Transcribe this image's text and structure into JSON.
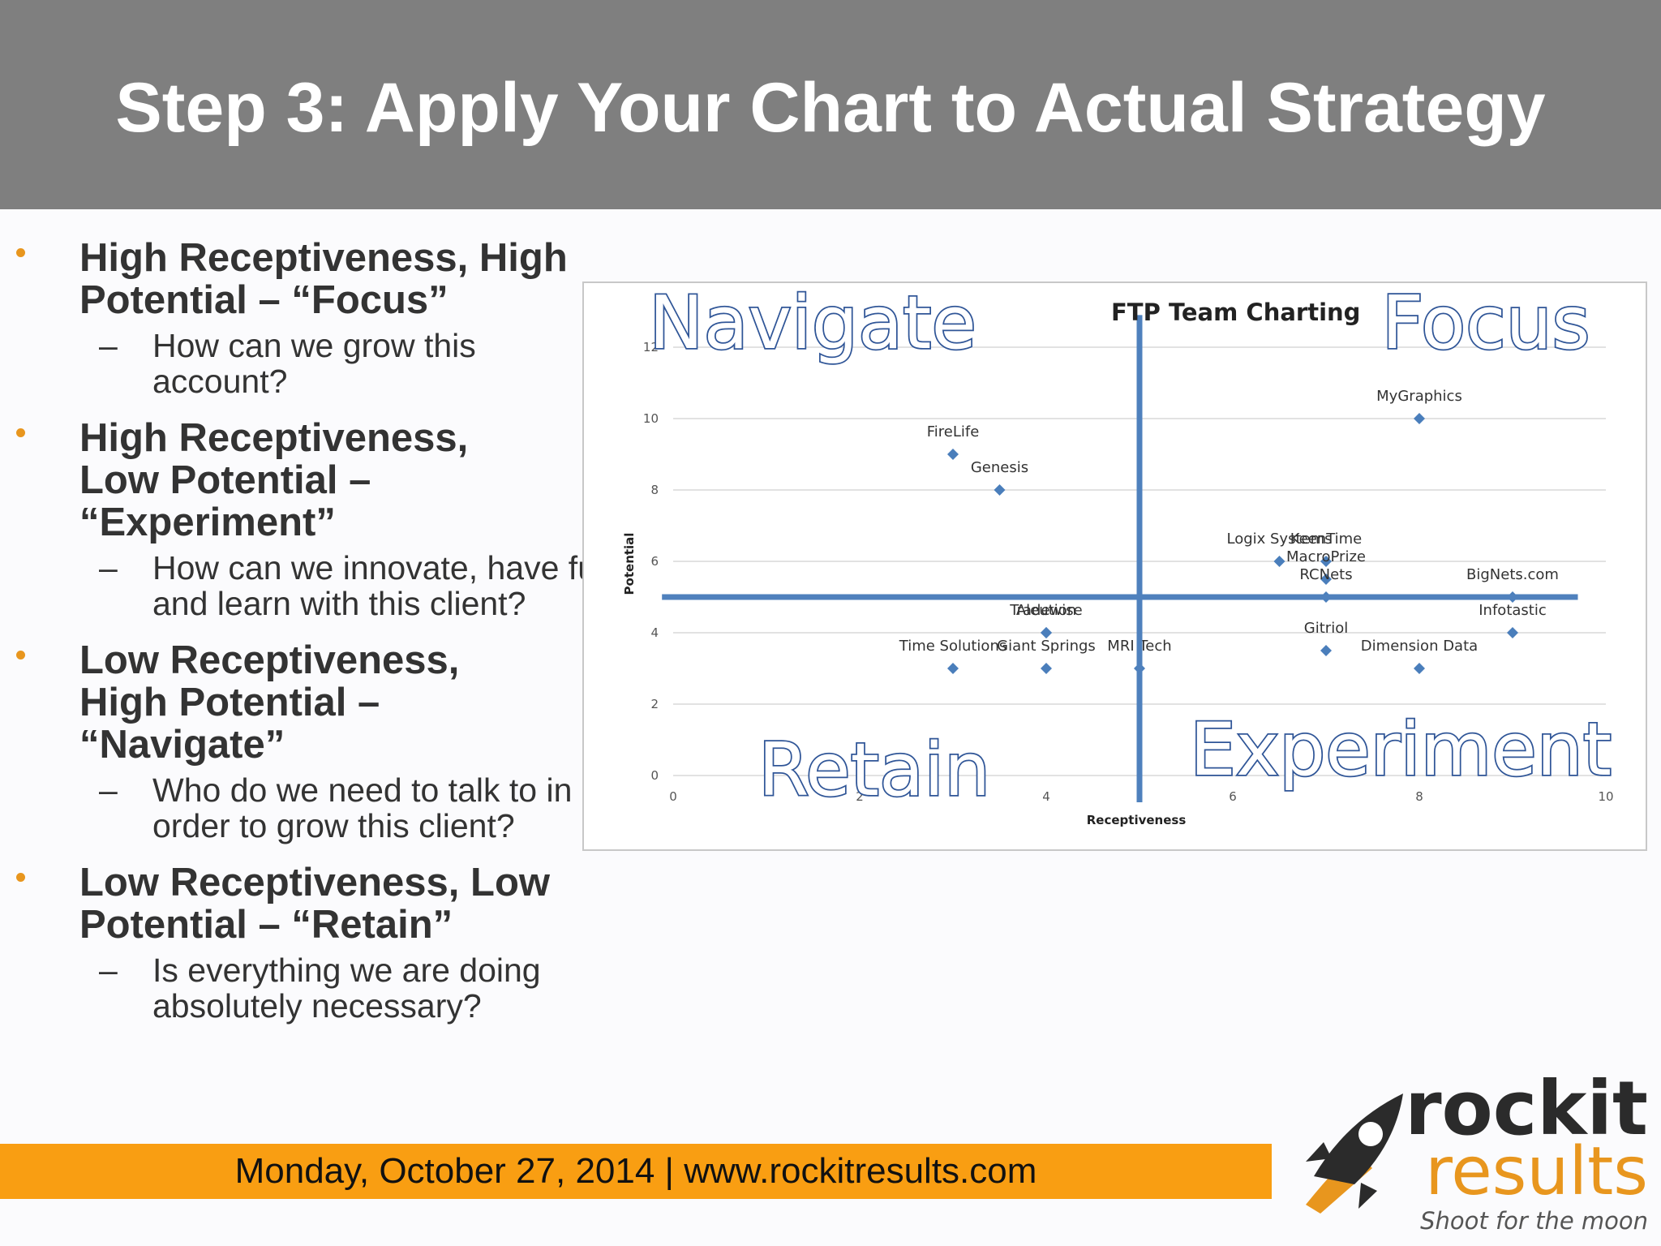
{
  "slide": {
    "title": "Step 3: Apply Your Chart to Actual Strategy",
    "bullets": [
      {
        "text": "High Receptiveness, High Potential – “Focus”",
        "sub": "How can we grow this account?"
      },
      {
        "text": "High Receptiveness, Low Potential – “Experiment”",
        "sub": "How can we innovate, have fun, and learn with this client?"
      },
      {
        "text": "Low Receptiveness, High Potential – “Navigate”",
        "sub": "Who do we need to talk to in order to grow this client?"
      },
      {
        "text": "Low Receptiveness, Low Potential – “Retain”",
        "sub": "Is everything we are doing absolutely necessary?"
      }
    ],
    "footer": "Monday, October 27, 2014  |  www.rockitresults.com",
    "colors": {
      "header": "#7f7f7f",
      "accent": "#f99e12",
      "bullet": "#e8961e",
      "point": "#4a7ebb",
      "quadrant_line": "#4f81bd"
    }
  },
  "logo": {
    "line1": "rockit",
    "line2": "results",
    "tagline": "Shoot for the moon",
    "icon": "rocket-icon"
  },
  "chart_data": {
    "type": "scatter",
    "title": "FTP Team Charting",
    "xlabel": "Receptiveness",
    "ylabel": "Potential",
    "xlim": [
      0,
      10
    ],
    "ylim": [
      0,
      12
    ],
    "xticks": [
      0,
      2,
      4,
      6,
      8,
      10
    ],
    "yticks": [
      0,
      2,
      4,
      6,
      8,
      10,
      12
    ],
    "grid": true,
    "points": [
      {
        "label": "FireLife",
        "x": 3,
        "y": 9
      },
      {
        "label": "Genesis",
        "x": 3.5,
        "y": 8
      },
      {
        "label": "MyGraphics",
        "x": 8,
        "y": 10
      },
      {
        "label": "Logix Systems",
        "x": 6.5,
        "y": 6
      },
      {
        "label": "KeenTime",
        "x": 7,
        "y": 6
      },
      {
        "label": "MacroPrize",
        "x": 7,
        "y": 5.5
      },
      {
        "label": "RCNets",
        "x": 7,
        "y": 5
      },
      {
        "label": "BigNets.com",
        "x": 9,
        "y": 5
      },
      {
        "label": "Tradewise",
        "x": 4,
        "y": 4
      },
      {
        "label": "Aleution",
        "x": 4,
        "y": 4
      },
      {
        "label": "Infotastic",
        "x": 9,
        "y": 4
      },
      {
        "label": "Gitriol",
        "x": 7,
        "y": 3.5
      },
      {
        "label": "Time Solutions",
        "x": 3,
        "y": 3
      },
      {
        "label": "Giant Springs",
        "x": 4,
        "y": 3
      },
      {
        "label": "MRI Tech",
        "x": 5,
        "y": 3
      },
      {
        "label": "Dimension Data",
        "x": 8,
        "y": 3
      }
    ],
    "quadrant_divider": {
      "x": 5,
      "y": 5
    },
    "quadrants": [
      {
        "position": "top-left",
        "label": "Navigate"
      },
      {
        "position": "top-right",
        "label": "Focus"
      },
      {
        "position": "bottom-left",
        "label": "Retain"
      },
      {
        "position": "bottom-right",
        "label": "Experiment"
      }
    ]
  }
}
